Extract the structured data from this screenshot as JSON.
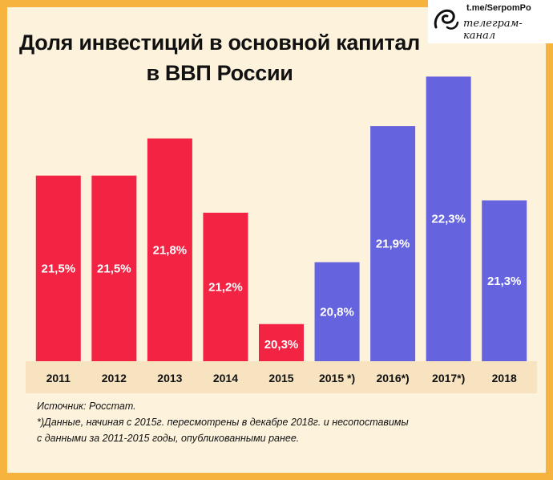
{
  "brand": {
    "handle": "t.me/SerpomPo",
    "subtitle": "телеграм-канал",
    "icon": "swirl-logo-icon"
  },
  "colors": {
    "red": "#f32344",
    "blue": "#6563dd",
    "frame": "#f6b33e",
    "panel": "#fdf3dd",
    "axis_strip": "#f7e3bf"
  },
  "chart_data": {
    "type": "bar",
    "title_lines": [
      "Доля инвестиций в основной капитал",
      "в ВВП России"
    ],
    "categories": [
      "2011",
      "2012",
      "2013",
      "2014",
      "2015",
      "2015 *)",
      "2016*)",
      "2017*)",
      "2018"
    ],
    "values": [
      21.5,
      21.5,
      21.8,
      21.2,
      20.3,
      20.8,
      21.9,
      22.3,
      21.3
    ],
    "value_labels": [
      "21,5%",
      "21,5%",
      "21,8%",
      "21,2%",
      "20,3%",
      "20,8%",
      "21,9%",
      "22,3%",
      "21,3%"
    ],
    "series_color_keys": [
      "red",
      "red",
      "red",
      "red",
      "red",
      "blue",
      "blue",
      "blue",
      "blue"
    ],
    "ylim": [
      20.0,
      22.4
    ],
    "xlabel": "",
    "ylabel": "",
    "grid": false,
    "legend": "none"
  },
  "notes": [
    "Источник: Росстат.",
    "*)Данные, начиная с 2015г. пересмотрены в декабре 2018г. и несопоставимы",
    "с данными за 2011-2015 годы, опубликованными ранее."
  ]
}
